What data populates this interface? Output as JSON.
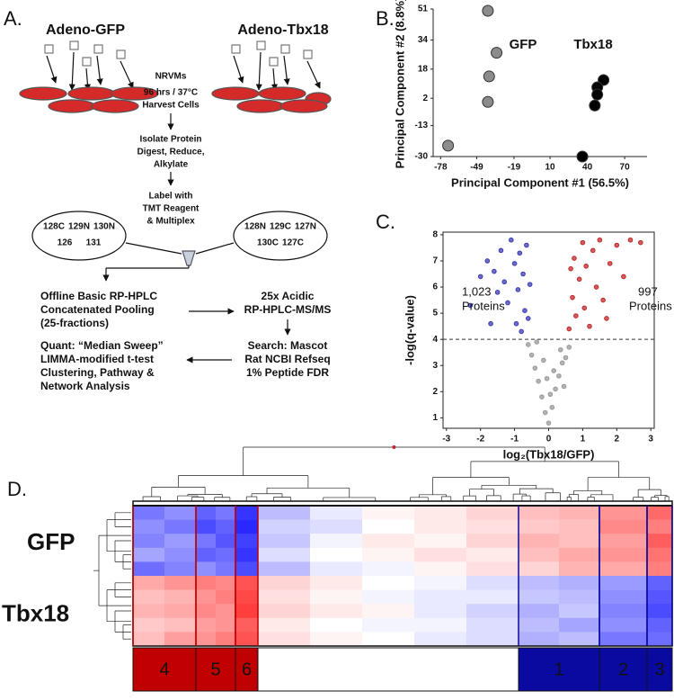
{
  "panel_labels": [
    "A.",
    "B.",
    "C.",
    "D."
  ],
  "diagram": {
    "left_title": "Adeno-GFP",
    "right_title": "Adeno-Tbx18",
    "steps": [
      "NRVMs",
      "96 hrs / 37°C",
      "Harvest Cells",
      "Isolate Protein",
      "Digest, Reduce,",
      "Alkylate",
      "Label with",
      "TMT Reagent",
      "& Multiplex"
    ],
    "left_tags": [
      "128C",
      "129N",
      "130N",
      "126",
      "131"
    ],
    "right_tags": [
      "128N",
      "129C",
      "127N",
      "130C",
      "127C"
    ],
    "fractionation": [
      "Offline Basic RP-HPLC",
      "Concatenated Pooling",
      "(25-fractions)"
    ],
    "ms": [
      "25x Acidic",
      "RP-HPLC-MS/MS"
    ],
    "search": [
      "Search: Mascot",
      "Rat NCBI Refseq",
      "1% Peptide FDR"
    ],
    "quant": [
      "Quant: “Median Sweep”",
      "LIMMA-modified t-test",
      "Clustering, Pathway &",
      "Network Analysis"
    ]
  },
  "chart_data": [
    {
      "type": "scatter",
      "xlabel": "Principal Component #1 (56.5%)",
      "ylabel": "Principal Component #2 (8.8%)",
      "xlim": [
        -84,
        88
      ],
      "ylim": [
        -30,
        51
      ],
      "xticks": [
        -78,
        -49,
        -19,
        10,
        40,
        70
      ],
      "yticks": [
        -30,
        -13,
        2,
        18,
        34,
        51
      ],
      "annotations": [
        "GFP",
        "Tbx18"
      ],
      "series": [
        {
          "color": "#8c8c8c",
          "x": [
            -40,
            -33,
            -39,
            -40,
            -72
          ],
          "values": [
            50,
            27,
            14,
            0,
            -24
          ]
        },
        {
          "color": "#000000",
          "x": [
            53,
            48,
            48,
            46,
            36
          ],
          "values": [
            12,
            8,
            4,
            -2,
            -30
          ]
        }
      ]
    },
    {
      "type": "scatter",
      "xlabel": "log₂(Tbx18/GFP)",
      "ylabel": "-log(q-value)",
      "xlim": [
        -3.1,
        3.1
      ],
      "ylim": [
        0.6,
        8.1
      ],
      "xticks": [
        -3,
        -2,
        -1,
        0,
        1,
        2,
        3
      ],
      "yticks": [
        1,
        2,
        3,
        4,
        5,
        6,
        7,
        8
      ],
      "threshold": 4,
      "annotations": [
        "1,023",
        "Proteins",
        "997",
        "Proteins"
      ],
      "series": [
        {
          "color": "#9a9a9a",
          "x": [
            0,
            -0.1,
            0.1,
            -0.2,
            0.2,
            -0.3,
            0.3,
            -0.4,
            0.4,
            -0.5,
            0.5,
            -0.6,
            0.6,
            -0.15,
            0.15,
            -0.35,
            0.35,
            0.05,
            -0.05,
            0.45
          ],
          "values": [
            0.8,
            1.2,
            1.4,
            1.8,
            2.1,
            2.4,
            2.6,
            2.9,
            3.1,
            3.4,
            3.3,
            3.8,
            3.7,
            3.2,
            2.8,
            3.9,
            3.6,
            1.9,
            2.5,
            2.2
          ]
        },
        {
          "color": "#3c3cb4",
          "x": [
            -2.3,
            -2.0,
            -1.8,
            -1.6,
            -1.5,
            -1.4,
            -1.3,
            -1.2,
            -1.1,
            -1.0,
            -0.95,
            -0.9,
            -0.85,
            -0.8,
            -0.75,
            -0.7,
            -0.65,
            -0.6,
            -0.55,
            -1.7
          ],
          "values": [
            5.3,
            6.4,
            7.0,
            6.6,
            5.8,
            7.4,
            6.2,
            5.4,
            7.8,
            6.9,
            4.6,
            5.9,
            7.3,
            4.3,
            6.5,
            5.1,
            7.6,
            4.8,
            6.1,
            4.6
          ]
        },
        {
          "color": "#c0282a",
          "x": [
            0.6,
            0.7,
            0.75,
            0.8,
            0.9,
            1.0,
            1.05,
            1.1,
            1.2,
            1.3,
            1.4,
            1.5,
            1.6,
            1.8,
            2.0,
            2.2,
            2.4,
            2.7,
            1.7,
            0.65
          ],
          "values": [
            4.4,
            5.6,
            7.1,
            4.9,
            6.3,
            7.7,
            5.2,
            6.8,
            4.5,
            7.4,
            6.0,
            7.8,
            5.5,
            6.9,
            7.6,
            6.4,
            7.8,
            7.7,
            4.8,
            6.7
          ]
        }
      ]
    },
    {
      "type": "heatmap",
      "row_groups": [
        "GFP",
        "Tbx18"
      ],
      "clusters": [
        {
          "label": "4",
          "color": "#c00000"
        },
        {
          "label": "5",
          "color": "#c00000"
        },
        {
          "label": "6",
          "color": "#c00000"
        },
        {
          "label": "1",
          "color": "#0a0aa0"
        },
        {
          "label": "2",
          "color": "#0a0aa0"
        },
        {
          "label": "3",
          "color": "#0a0aa0"
        }
      ],
      "matrix": [
        [
          -0.6,
          -0.5,
          -0.7,
          -0.6,
          -0.9,
          -0.3,
          -0.1,
          0.05,
          0.1,
          0.2,
          0.3,
          0.35,
          0.5,
          0.7
        ],
        [
          -0.5,
          -0.6,
          -0.8,
          -0.7,
          -0.95,
          -0.2,
          -0.15,
          0,
          0.1,
          0.15,
          0.25,
          0.3,
          0.55,
          0.6
        ],
        [
          -0.55,
          -0.45,
          -0.6,
          -0.75,
          -0.85,
          -0.25,
          -0.05,
          0.1,
          0.05,
          0.2,
          0.35,
          0.3,
          0.45,
          0.75
        ],
        [
          -0.4,
          -0.5,
          -0.7,
          -0.65,
          -0.9,
          -0.15,
          0,
          0.05,
          0.15,
          0.1,
          0.3,
          0.4,
          0.5,
          0.65
        ],
        [
          -0.65,
          -0.55,
          -0.5,
          -0.6,
          -0.8,
          -0.3,
          -0.1,
          -0.05,
          0.05,
          0.15,
          0.2,
          0.35,
          0.4,
          0.6
        ],
        [
          0.4,
          0.5,
          0.6,
          0.55,
          0.8,
          0.2,
          0.1,
          0,
          -0.05,
          -0.15,
          -0.3,
          -0.35,
          -0.45,
          -0.7
        ],
        [
          0.3,
          0.35,
          0.5,
          0.6,
          0.85,
          0.15,
          0.05,
          -0.05,
          -0.1,
          -0.1,
          -0.25,
          -0.3,
          -0.5,
          -0.75
        ],
        [
          0.35,
          0.4,
          0.55,
          0.5,
          0.9,
          0.2,
          0.1,
          0.05,
          -0.1,
          -0.2,
          -0.35,
          -0.25,
          -0.55,
          -0.8
        ],
        [
          0.25,
          0.3,
          0.45,
          0.5,
          0.75,
          0.1,
          0,
          -0.05,
          -0.05,
          -0.15,
          -0.3,
          -0.4,
          -0.5,
          -0.7
        ],
        [
          0.3,
          0.45,
          0.5,
          0.6,
          0.8,
          0.15,
          0.05,
          0,
          -0.1,
          -0.15,
          -0.35,
          -0.3,
          -0.6,
          -0.65
        ]
      ]
    }
  ]
}
